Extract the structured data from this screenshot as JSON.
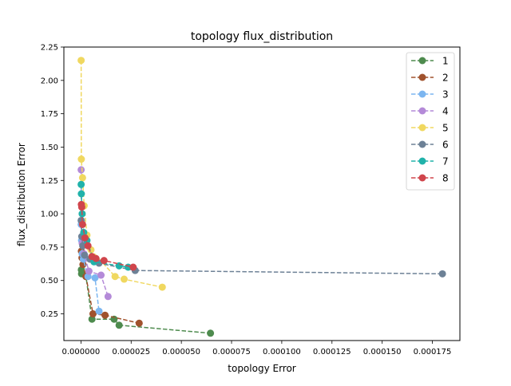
{
  "chart_data": {
    "type": "line",
    "title": "topology flux_distribution",
    "xlabel": "topology Error",
    "ylabel": "flux_distribution Error",
    "xlim": [
      -8.5e-06,
      0.0001887
    ],
    "ylim": [
      0.05,
      2.25
    ],
    "x_ticks": [
      0.0,
      2.5e-05,
      5e-05,
      7.5e-05,
      0.0001,
      0.000125,
      0.00015,
      0.000175
    ],
    "x_tick_labels": [
      "0.000000",
      "0.000025",
      "0.000050",
      "0.000075",
      "0.000100",
      "0.000125",
      "0.000150",
      "0.000175"
    ],
    "y_ticks": [
      0.25,
      0.5,
      0.75,
      1.0,
      1.25,
      1.5,
      1.75,
      2.0,
      2.25
    ],
    "y_tick_labels": [
      "0.25",
      "0.50",
      "0.75",
      "1.00",
      "1.25",
      "1.50",
      "1.75",
      "2.00",
      "2.25"
    ],
    "grid": false,
    "legend_position": "top-right",
    "line_style": "dashed",
    "marker": "circle",
    "series": [
      {
        "name": "1",
        "color": "#4e8b4e",
        "x": [
          2e-07,
          3e-07,
          2.5e-06,
          5.5e-06,
          1.65e-05,
          1.9e-05,
          6.45e-05
        ],
        "y": [
          0.58,
          0.55,
          0.53,
          0.21,
          0.21,
          0.165,
          0.105
        ]
      },
      {
        "name": "2",
        "color": "#a0522d",
        "x": [
          2e-07,
          5e-07,
          1e-06,
          2.5e-06,
          6e-06,
          1.2e-05,
          2.9e-05
        ],
        "y": [
          0.72,
          0.67,
          0.62,
          0.53,
          0.25,
          0.24,
          0.18
        ]
      },
      {
        "name": "3",
        "color": "#7cb6f0",
        "x": [
          1e-07,
          3e-07,
          6e-07,
          1.2e-06,
          3.5e-06,
          7e-06,
          9e-06
        ],
        "y": [
          0.92,
          0.8,
          0.7,
          0.66,
          0.53,
          0.52,
          0.27
        ]
      },
      {
        "name": "4",
        "color": "#b48ad8",
        "x": [
          1e-07,
          2e-07,
          6e-07,
          1.5e-06,
          4e-06,
          1e-05,
          1.35e-05
        ],
        "y": [
          1.33,
          0.95,
          0.78,
          0.7,
          0.57,
          0.54,
          0.38
        ]
      },
      {
        "name": "5",
        "color": "#f0d860",
        "x": [
          1e-07,
          2e-07,
          8e-07,
          1.6e-06,
          3e-06,
          5e-06,
          1.7e-05,
          2.15e-05,
          4.05e-05
        ],
        "y": [
          2.15,
          1.41,
          1.27,
          1.06,
          0.84,
          0.73,
          0.53,
          0.51,
          0.45
        ]
      },
      {
        "name": "6",
        "color": "#6d8196",
        "x": [
          1e-07,
          4e-07,
          9e-07,
          1.8e-06,
          4.5e-06,
          9e-06,
          2.7e-05,
          0.00018
        ],
        "y": [
          0.95,
          0.83,
          0.76,
          0.69,
          0.66,
          0.63,
          0.575,
          0.55
        ]
      },
      {
        "name": "7",
        "color": "#20b2aa",
        "x": [
          1e-07,
          2e-07,
          6e-07,
          1.4e-06,
          3e-06,
          6.5e-06,
          1.9e-05,
          2.35e-05
        ],
        "y": [
          1.22,
          1.15,
          1.0,
          0.86,
          0.8,
          0.64,
          0.61,
          0.6
        ]
      },
      {
        "name": "8",
        "color": "#d0454c",
        "x": [
          2e-07,
          4e-07,
          8e-07,
          2e-06,
          3.5e-06,
          5.5e-06,
          7.5e-06,
          1.15e-05,
          2.6e-05
        ],
        "y": [
          1.07,
          1.05,
          0.92,
          0.82,
          0.76,
          0.68,
          0.665,
          0.65,
          0.6
        ]
      }
    ]
  }
}
